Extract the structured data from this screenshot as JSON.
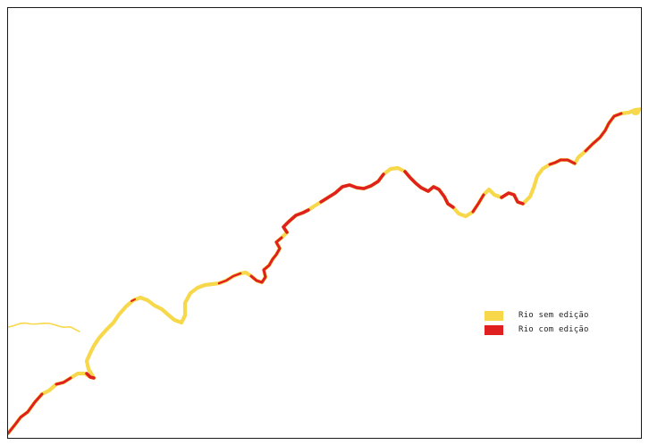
{
  "colors": {
    "river_unedited": "#f7d84a",
    "river_edited": "#e02020",
    "border": "#1a1a1a",
    "background": "#ffffff"
  },
  "legend": {
    "items": [
      {
        "label": "Rio sem edição",
        "color": "#f7d84a"
      },
      {
        "label": "Rio com edição",
        "color": "#e02020"
      }
    ]
  }
}
